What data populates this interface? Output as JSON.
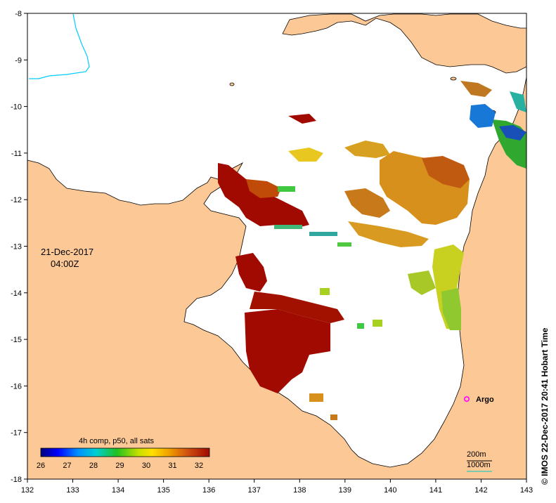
{
  "map": {
    "date_line1": "21-Dec-2017",
    "date_line2": "04:00Z",
    "colorbar_title": "4h comp, p50, all sats",
    "colorbar_ticks": [
      "26",
      "27",
      "28",
      "29",
      "30",
      "31",
      "32"
    ],
    "credit": "© IMOS 22-Dec-2017 20:41 Hobart Time",
    "argo_label": "Argo",
    "isobath_200": "200m",
    "isobath_1000": "1000m",
    "x_ticks": [
      "132",
      "133",
      "134",
      "135",
      "136",
      "137",
      "138",
      "139",
      "140",
      "141",
      "142",
      "143"
    ],
    "y_ticks": [
      "-8",
      "-9",
      "-10",
      "-11",
      "-12",
      "-13",
      "-14",
      "-15",
      "-16",
      "-17",
      "-18"
    ],
    "colors": {
      "land": "#fcc896",
      "sea": "#ffffff",
      "river": "#00ccff",
      "argo": "#ff00ff",
      "isobath_200": "#000000",
      "isobath_1000": "#00c8c8",
      "sst_32": "#a00a00"
    }
  }
}
